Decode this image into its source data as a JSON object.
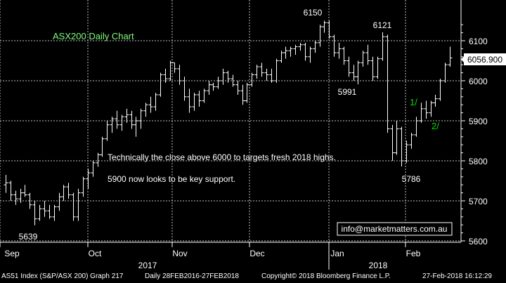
{
  "chart_data": {
    "type": "ohlc",
    "title": "ASX200 Daily Chart",
    "ylim": [
      5590,
      6180
    ],
    "y_ticks": [
      5600,
      5700,
      5800,
      5900,
      6000,
      6100
    ],
    "y_tick_labels": [
      "5600",
      "5700",
      "5800",
      "5900",
      "6000",
      "6100"
    ],
    "x_month_labels": [
      "Sep",
      "Oct",
      "Nov",
      "Dec",
      "Jan",
      "Feb"
    ],
    "year_labels": [
      "2017",
      "2018"
    ],
    "last_price": "6056.900",
    "grid": true,
    "series": [
      {
        "values": [
          [
            5740,
            5765,
            5720,
            5745
          ],
          [
            5745,
            5750,
            5700,
            5715
          ],
          [
            5715,
            5725,
            5690,
            5705
          ],
          [
            5705,
            5730,
            5695,
            5720
          ],
          [
            5720,
            5740,
            5710,
            5715
          ],
          [
            5715,
            5720,
            5680,
            5690
          ],
          [
            5690,
            5700,
            5639,
            5655
          ],
          [
            5655,
            5690,
            5650,
            5680
          ],
          [
            5680,
            5700,
            5660,
            5675
          ],
          [
            5675,
            5690,
            5655,
            5660
          ],
          [
            5660,
            5690,
            5650,
            5685
          ],
          [
            5685,
            5720,
            5675,
            5710
          ],
          [
            5710,
            5740,
            5700,
            5735
          ],
          [
            5735,
            5745,
            5705,
            5715
          ],
          [
            5715,
            5720,
            5650,
            5660
          ],
          [
            5660,
            5730,
            5650,
            5720
          ],
          [
            5720,
            5760,
            5710,
            5755
          ],
          [
            5755,
            5780,
            5730,
            5770
          ],
          [
            5770,
            5800,
            5760,
            5795
          ],
          [
            5795,
            5820,
            5785,
            5815
          ],
          [
            5815,
            5860,
            5810,
            5855
          ],
          [
            5855,
            5900,
            5850,
            5890
          ],
          [
            5890,
            5910,
            5870,
            5905
          ],
          [
            5905,
            5925,
            5880,
            5890
          ],
          [
            5890,
            5915,
            5875,
            5910
          ],
          [
            5910,
            5930,
            5895,
            5915
          ],
          [
            5915,
            5925,
            5880,
            5890
          ],
          [
            5890,
            5910,
            5860,
            5900
          ],
          [
            5900,
            5930,
            5880,
            5925
          ],
          [
            5925,
            5945,
            5910,
            5940
          ],
          [
            5940,
            5960,
            5920,
            5935
          ],
          [
            5935,
            5970,
            5925,
            5965
          ],
          [
            5965,
            6020,
            5960,
            6015
          ],
          [
            6015,
            6030,
            5995,
            6005
          ],
          [
            6005,
            6050,
            6000,
            6045
          ],
          [
            6045,
            6045,
            6020,
            6030
          ],
          [
            6030,
            6040,
            5990,
            6000
          ],
          [
            6000,
            6010,
            5950,
            5960
          ],
          [
            5960,
            5980,
            5920,
            5935
          ],
          [
            5935,
            5970,
            5925,
            5965
          ],
          [
            5965,
            5975,
            5935,
            5950
          ],
          [
            5950,
            5980,
            5945,
            5975
          ],
          [
            5975,
            6000,
            5965,
            5990
          ],
          [
            5990,
            5995,
            5975,
            5985
          ],
          [
            5985,
            6010,
            5980,
            6000
          ],
          [
            6000,
            6030,
            5990,
            6020
          ],
          [
            6020,
            6025,
            5995,
            6005
          ],
          [
            6005,
            6015,
            5985,
            5990
          ],
          [
            5990,
            6000,
            5965,
            5975
          ],
          [
            5975,
            5990,
            5940,
            5950
          ],
          [
            5950,
            5995,
            5945,
            5990
          ],
          [
            5990,
            6020,
            5985,
            6015
          ],
          [
            6015,
            6040,
            6005,
            6035
          ],
          [
            6035,
            6045,
            6010,
            6020
          ],
          [
            6020,
            6030,
            6000,
            6015
          ],
          [
            6015,
            6030,
            5995,
            6000
          ],
          [
            6000,
            6055,
            5995,
            6050
          ],
          [
            6050,
            6075,
            6045,
            6070
          ],
          [
            6070,
            6085,
            6055,
            6075
          ],
          [
            6075,
            6085,
            6060,
            6080
          ],
          [
            6080,
            6090,
            6065,
            6085
          ],
          [
            6085,
            6095,
            6075,
            6090
          ],
          [
            6090,
            6095,
            6050,
            6060
          ],
          [
            6060,
            6085,
            6045,
            6080
          ],
          [
            6080,
            6100,
            6070,
            6095
          ],
          [
            6095,
            6140,
            6085,
            6135
          ],
          [
            6135,
            6150,
            6120,
            6145
          ],
          [
            6145,
            6150,
            6105,
            6110
          ],
          [
            6110,
            6115,
            6060,
            6070
          ],
          [
            6070,
            6095,
            6055,
            6080
          ],
          [
            6080,
            6085,
            6040,
            6050
          ],
          [
            6050,
            6060,
            6010,
            6020
          ],
          [
            6020,
            6040,
            6000,
            6010
          ],
          [
            6010,
            6050,
            5991,
            6045
          ],
          [
            6045,
            6075,
            6035,
            6070
          ],
          [
            6070,
            6090,
            6040,
            6050
          ],
          [
            6050,
            6060,
            6000,
            6010
          ],
          [
            6010,
            6060,
            6005,
            6055
          ],
          [
            6055,
            6121,
            6050,
            6110
          ],
          [
            6110,
            6115,
            5870,
            5880
          ],
          [
            5880,
            5890,
            5800,
            5820
          ],
          [
            5820,
            5900,
            5815,
            5880
          ],
          [
            5880,
            5885,
            5786,
            5800
          ],
          [
            5800,
            5850,
            5795,
            5840
          ],
          [
            5840,
            5870,
            5830,
            5865
          ],
          [
            5865,
            5910,
            5860,
            5900
          ],
          [
            5900,
            5945,
            5895,
            5930
          ],
          [
            5930,
            5950,
            5905,
            5920
          ],
          [
            5920,
            5950,
            5910,
            5945
          ],
          [
            5945,
            5965,
            5935,
            5955
          ],
          [
            5955,
            6005,
            5950,
            6000
          ],
          [
            6000,
            6045,
            5995,
            6040
          ],
          [
            6040,
            6085,
            6035,
            6057
          ]
        ]
      }
    ],
    "annotations": [
      {
        "text": "6150"
      },
      {
        "text": "6121"
      },
      {
        "text": "5991"
      },
      {
        "text": "5786"
      },
      {
        "text": "5639"
      },
      {
        "text": "1/"
      },
      {
        "text": "2/"
      },
      {
        "text": "Technically the close above 6000 to targets fresh 2018 highs."
      },
      {
        "text": "5900 now looks to be key support."
      },
      {
        "text": "info@marketmatters.com.au"
      }
    ]
  },
  "colors": {
    "background": "#000000",
    "bars": "#ffffff",
    "grid": "#bfbfbf",
    "title": "#80ff80",
    "wave_label": "#00e000",
    "price_tag_bg": "#ffffff"
  },
  "footer": {
    "security": "AS51 Index (S&P/ASX 200) Graph 217",
    "range": "Daily 28FEB2016-27FEB2018",
    "copyright": "Copyright© 2018 Bloomberg Finance L.P.",
    "timestamp": "27-Feb-2018 16:12:29"
  }
}
